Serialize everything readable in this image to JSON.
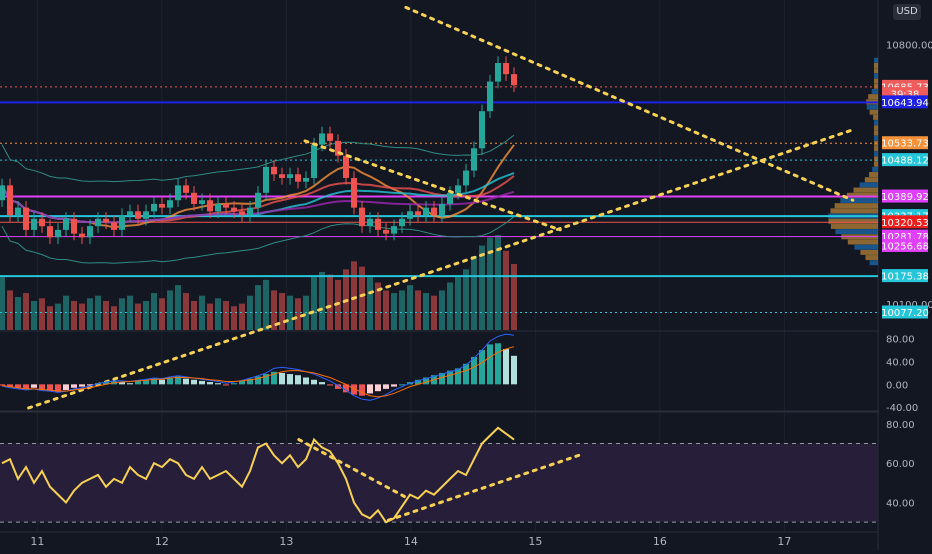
{
  "currency": "USD",
  "colors": {
    "background": "#131722",
    "grid": "#1e2230",
    "up": "#26a69a",
    "down": "#ef5350",
    "trendline": "#f7d154",
    "rsi_line": "#f7d154",
    "rsi_band": "#2a1f3d",
    "macd_line": "#2962ff",
    "signal_line": "#ff6d00"
  },
  "chart_data": [
    {
      "type": "candlestick",
      "panel": "price",
      "x_tick_labels": [
        "11",
        "12",
        "13",
        "14",
        "15",
        "16",
        "17"
      ],
      "y_tick_labels": [
        "10800.00",
        "10100.00"
      ],
      "y_range": [
        10030,
        10920
      ],
      "price_labels": [
        {
          "value": 10685.73,
          "text": "10685.73",
          "color": "#f05b5b"
        },
        {
          "value": 10666,
          "text": "39:38",
          "color": "#f05b5b"
        },
        {
          "value": 10643.94,
          "text": "10643.94",
          "color": "#1e22e6"
        },
        {
          "value": 10533.73,
          "text": "10533.73",
          "color": "#f7913a"
        },
        {
          "value": 10488.12,
          "text": "10488.12",
          "color": "#26c6da"
        },
        {
          "value": 10389.92,
          "text": "10389.92",
          "color": "#e040fb"
        },
        {
          "value": 10337.17,
          "text": "10337.17",
          "color": "#26c6da"
        },
        {
          "value": 10320.53,
          "text": "10320.53",
          "color": "#ef1c1c"
        },
        {
          "value": 10281.78,
          "text": "10281.78",
          "color": "#e040fb"
        },
        {
          "value": 10256.68,
          "text": "10256.68",
          "color": "#e040fb"
        },
        {
          "value": 10175.38,
          "text": "10175.38",
          "color": "#26c6da"
        },
        {
          "value": 10077.2,
          "text": "10077.20",
          "color": "#26c6da"
        }
      ],
      "horizontal_lines": [
        {
          "value": 10685.73,
          "color": "#ef5350",
          "style": "dotted"
        },
        {
          "value": 10643.94,
          "color": "#1e22e6",
          "style": "solid",
          "width": 2
        },
        {
          "value": 10533.73,
          "color": "#f7913a",
          "style": "dotted"
        },
        {
          "value": 10488.12,
          "color": "#26c6da",
          "style": "dotted"
        },
        {
          "value": 10389.92,
          "color": "#e040fb",
          "style": "solid",
          "width": 2
        },
        {
          "value": 10337.17,
          "color": "#26c6da",
          "style": "solid",
          "width": 2
        },
        {
          "value": 10320.53,
          "color": "#ef5350",
          "style": "solid"
        },
        {
          "value": 10281.78,
          "color": "#e040fb",
          "style": "solid"
        },
        {
          "value": 10175.38,
          "color": "#26c6da",
          "style": "solid",
          "width": 2
        },
        {
          "value": 10077.2,
          "color": "#26c6da",
          "style": "dotted"
        }
      ],
      "trendlines": [
        {
          "from": [
            13.05,
            10060
          ],
          "to": [
            17.55,
            10570
          ],
          "x_start": 10.93
        },
        {
          "from": [
            13.96,
            10900
          ],
          "to": [
            17.55,
            10380
          ]
        },
        {
          "from": [
            13.15,
            10540
          ],
          "to": [
            15.2,
            10300
          ]
        }
      ],
      "series": [
        {
          "name": "close",
          "values": [
            10420,
            10340,
            10360,
            10300,
            10330,
            10310,
            10280,
            10300,
            10330,
            10290,
            10280,
            10310,
            10330,
            10320,
            10300,
            10340,
            10350,
            10330,
            10350,
            10370,
            10360,
            10380,
            10420,
            10400,
            10370,
            10380,
            10350,
            10370,
            10360,
            10350,
            10340,
            10360,
            10400,
            10470,
            10450,
            10440,
            10450,
            10430,
            10440,
            10530,
            10560,
            10540,
            10500,
            10440,
            10360,
            10310,
            10330,
            10300,
            10290,
            10310,
            10330,
            10350,
            10340,
            10360,
            10340,
            10370,
            10400,
            10420,
            10460,
            10520,
            10620,
            10700,
            10750,
            10720,
            10690
          ]
        },
        {
          "name": "open",
          "values": [
            10380,
            10420,
            10340,
            10360,
            10300,
            10330,
            10310,
            10280,
            10300,
            10330,
            10290,
            10280,
            10310,
            10330,
            10320,
            10300,
            10340,
            10350,
            10330,
            10350,
            10370,
            10360,
            10380,
            10420,
            10400,
            10370,
            10380,
            10350,
            10370,
            10360,
            10350,
            10340,
            10360,
            10400,
            10470,
            10450,
            10440,
            10450,
            10430,
            10440,
            10530,
            10560,
            10540,
            10500,
            10440,
            10360,
            10310,
            10330,
            10300,
            10290,
            10310,
            10330,
            10350,
            10340,
            10360,
            10340,
            10370,
            10400,
            10420,
            10460,
            10520,
            10620,
            10700,
            10750,
            10720
          ]
        }
      ],
      "volume": [
        40,
        30,
        25,
        28,
        22,
        24,
        18,
        20,
        26,
        22,
        20,
        24,
        26,
        22,
        18,
        24,
        26,
        20,
        22,
        28,
        24,
        30,
        34,
        28,
        22,
        26,
        20,
        24,
        22,
        18,
        20,
        26,
        34,
        38,
        30,
        28,
        26,
        24,
        26,
        40,
        44,
        42,
        38,
        46,
        52,
        48,
        40,
        36,
        30,
        28,
        30,
        34,
        30,
        28,
        26,
        30,
        36,
        40,
        46,
        56,
        64,
        70,
        72,
        60,
        50
      ]
    },
    {
      "type": "bar",
      "panel": "macd",
      "y_tick_labels": [
        "80.00",
        "40.00",
        "0.00",
        "-40.00"
      ],
      "y_range": [
        -45,
        90
      ],
      "histogram": [
        -2,
        -4,
        -6,
        -8,
        -6,
        -10,
        -12,
        -14,
        -10,
        -6,
        -4,
        -2,
        2,
        4,
        6,
        4,
        2,
        6,
        8,
        10,
        8,
        12,
        14,
        10,
        8,
        6,
        4,
        2,
        -2,
        2,
        6,
        10,
        14,
        18,
        22,
        20,
        18,
        16,
        12,
        8,
        4,
        -2,
        -8,
        -14,
        -18,
        -20,
        -16,
        -12,
        -8,
        -4,
        0,
        4,
        8,
        12,
        16,
        20,
        24,
        28,
        36,
        48,
        60,
        70,
        72,
        62,
        50
      ],
      "macd_line": [
        -3,
        -6,
        -8,
        -10,
        -8,
        -11,
        -12,
        -14,
        -12,
        -8,
        -6,
        -3,
        1,
        4,
        6,
        6,
        5,
        7,
        9,
        11,
        10,
        13,
        15,
        13,
        11,
        9,
        7,
        5,
        2,
        4,
        7,
        11,
        15,
        20,
        28,
        30,
        28,
        26,
        22,
        18,
        12,
        6,
        -2,
        -10,
        -20,
        -26,
        -28,
        -24,
        -18,
        -10,
        -4,
        2,
        6,
        10,
        14,
        18,
        22,
        26,
        34,
        46,
        60,
        76,
        84,
        88,
        86
      ],
      "signal_line": [
        -2,
        -4,
        -6,
        -8,
        -8,
        -9,
        -10,
        -12,
        -12,
        -10,
        -8,
        -6,
        -3,
        0,
        3,
        4,
        5,
        6,
        7,
        9,
        9,
        11,
        12,
        12,
        11,
        10,
        8,
        7,
        5,
        5,
        6,
        8,
        10,
        14,
        18,
        22,
        24,
        24,
        22,
        20,
        16,
        12,
        6,
        0,
        -8,
        -14,
        -20,
        -22,
        -20,
        -16,
        -10,
        -4,
        0,
        4,
        8,
        12,
        16,
        20,
        24,
        30,
        38,
        48,
        56,
        62,
        66
      ]
    },
    {
      "type": "line",
      "panel": "rsi",
      "y_tick_labels": [
        "80.00",
        "60.00",
        "40.00"
      ],
      "y_range": [
        25,
        85
      ],
      "band": [
        30,
        70
      ],
      "values": [
        60,
        62,
        52,
        58,
        50,
        56,
        48,
        44,
        40,
        46,
        50,
        52,
        54,
        48,
        52,
        50,
        58,
        54,
        52,
        60,
        58,
        62,
        60,
        54,
        52,
        58,
        52,
        54,
        56,
        52,
        48,
        56,
        68,
        70,
        64,
        60,
        64,
        58,
        62,
        72,
        68,
        66,
        60,
        52,
        40,
        34,
        32,
        36,
        30,
        32,
        38,
        44,
        42,
        46,
        44,
        48,
        52,
        56,
        54,
        62,
        70,
        74,
        78,
        75,
        72
      ],
      "trendlines": [
        {
          "from": [
            13.1,
            72
          ],
          "to": [
            13.95,
            43
          ]
        },
        {
          "from": [
            13.82,
            31
          ],
          "to": [
            15.35,
            64
          ]
        }
      ]
    }
  ]
}
